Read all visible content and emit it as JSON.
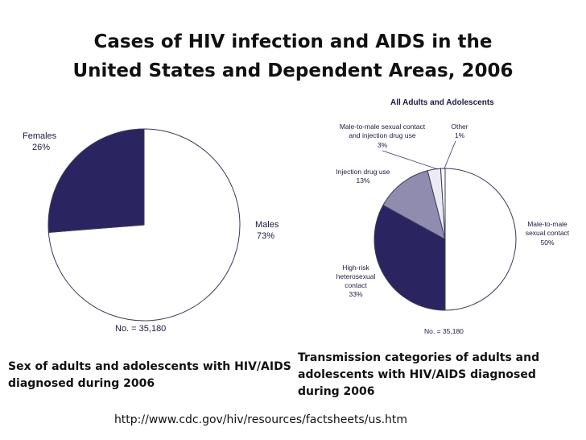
{
  "title_line1": "Cases of HIV infection and AIDS in the",
  "title_line2": "United States and Dependent Areas, 2006",
  "colors": {
    "dark": "#2a2460",
    "medium": "#8f8cb0",
    "light": "#ecebf4",
    "white": "#ffffff",
    "stroke": "#3a3a5a"
  },
  "chart_data": [
    {
      "type": "pie",
      "title": "",
      "slices": [
        {
          "label": "Males",
          "value_label": "73%",
          "value": 73
        },
        {
          "label": "Females",
          "value_label": "26%",
          "value": 26
        }
      ],
      "note": "No. = 35,180",
      "caption": "Sex of adults and adolescents with HIV/AIDS diagnosed during 2006"
    },
    {
      "type": "pie",
      "title": "All Adults and Adolescents",
      "slices": [
        {
          "label": "Male-to-male sexual contact",
          "value_label": "50%",
          "value": 50
        },
        {
          "label": "High-risk heterosexual contact",
          "value_label": "33%",
          "value": 33
        },
        {
          "label": "Injection drug use",
          "value_label": "13%",
          "value": 13
        },
        {
          "label": "Male-to-male sexual contact and injection drug use",
          "value_label": "3%",
          "value": 3
        },
        {
          "label": "Other",
          "value_label": "1%",
          "value": 1
        }
      ],
      "note": "No. = 35,180",
      "caption": "Transmission categories of adults and adolescents  with HIV/AIDS diagnosed during 2006"
    }
  ],
  "source_url": "http://www.cdc.gov/hiv/resources/factsheets/us.htm"
}
